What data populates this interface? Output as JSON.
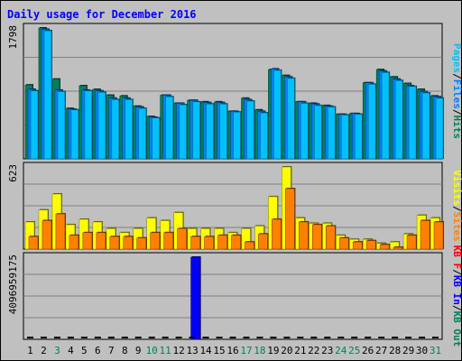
{
  "chart_data": [
    {
      "type": "bar",
      "title": "Daily usage for December 2016",
      "categories": [
        "1",
        "2",
        "3",
        "4",
        "5",
        "6",
        "7",
        "8",
        "9",
        "10",
        "11",
        "12",
        "13",
        "14",
        "15",
        "16",
        "17",
        "18",
        "19",
        "20",
        "21",
        "22",
        "23",
        "24",
        "25",
        "26",
        "27",
        "28",
        "29",
        "30",
        "31"
      ],
      "weekend_days": [
        "3",
        "10",
        "11",
        "17",
        "18",
        "24",
        "25",
        "31"
      ],
      "ymax_label": "1798",
      "ylim": [
        0,
        1798
      ],
      "right_legend": [
        "Pages",
        "/",
        "Files",
        "/",
        "Hits"
      ],
      "series": [
        {
          "name": "Hits",
          "color": "#00805c",
          "values": [
            1020,
            1798,
            1100,
            700,
            1010,
            960,
            880,
            870,
            730,
            590,
            880,
            770,
            810,
            790,
            790,
            660,
            840,
            680,
            1230,
            1150,
            790,
            770,
            740,
            620,
            630,
            1050,
            1230,
            1130,
            1040,
            960,
            870
          ]
        },
        {
          "name": "Files",
          "color": "#0080ff",
          "values": [
            960,
            1780,
            950,
            690,
            950,
            940,
            840,
            840,
            720,
            580,
            880,
            770,
            810,
            780,
            780,
            660,
            820,
            660,
            1240,
            1130,
            790,
            760,
            730,
            620,
            630,
            1050,
            1210,
            1100,
            1010,
            930,
            860
          ]
        },
        {
          "name": "Pages",
          "color": "#00c0ff",
          "values": [
            940,
            1760,
            930,
            680,
            940,
            920,
            820,
            820,
            700,
            570,
            860,
            750,
            790,
            760,
            760,
            650,
            800,
            640,
            1220,
            1110,
            770,
            740,
            720,
            610,
            620,
            1030,
            1190,
            1080,
            1000,
            910,
            840
          ]
        }
      ]
    },
    {
      "type": "bar",
      "ymax_label": "623",
      "ylim": [
        0,
        623
      ],
      "right_legend": [
        "Visits",
        "/",
        "Sites"
      ],
      "series": [
        {
          "name": "Visits",
          "color": "#ffff00",
          "values": [
            210,
            300,
            420,
            190,
            230,
            210,
            160,
            130,
            160,
            240,
            220,
            280,
            160,
            160,
            160,
            130,
            160,
            180,
            400,
            623,
            240,
            200,
            200,
            110,
            80,
            80,
            50,
            60,
            120,
            260,
            240
          ]
        },
        {
          "name": "Sites",
          "color": "#ff8000",
          "values": [
            100,
            220,
            270,
            110,
            130,
            130,
            100,
            100,
            90,
            130,
            130,
            160,
            100,
            100,
            110,
            110,
            60,
            120,
            230,
            460,
            210,
            190,
            180,
            90,
            60,
            70,
            40,
            20,
            110,
            220,
            210
          ]
        }
      ]
    },
    {
      "type": "bar",
      "ymax_label": "4096959175",
      "ylim": [
        0,
        4096959175
      ],
      "right_legend": [
        "KB F",
        "/",
        "KB In",
        "/",
        "KB Out"
      ],
      "series": [
        {
          "name": "KB F",
          "color": "#ff0000",
          "values": [
            0,
            0,
            0,
            0,
            0,
            0,
            0,
            0,
            0,
            0,
            0,
            0,
            0,
            0,
            0,
            0,
            0,
            0,
            0,
            0,
            0,
            0,
            0,
            0,
            0,
            0,
            0,
            0,
            0,
            0,
            0
          ]
        },
        {
          "name": "KB In",
          "color": "#0000ff",
          "values": [
            0,
            0,
            0,
            0,
            0,
            0,
            0,
            0,
            0,
            0,
            0,
            0,
            4096959175,
            0,
            0,
            0,
            0,
            0,
            0,
            0,
            0,
            0,
            0,
            0,
            0,
            0,
            0,
            0,
            0,
            0,
            0
          ]
        },
        {
          "name": "KB Out",
          "color": "#00805c",
          "values": [
            0,
            0,
            0,
            0,
            0,
            0,
            0,
            0,
            0,
            0,
            0,
            0,
            0,
            0,
            0,
            0,
            0,
            0,
            0,
            0,
            0,
            0,
            0,
            0,
            0,
            0,
            0,
            0,
            0,
            0,
            0
          ]
        }
      ]
    }
  ],
  "colors": {
    "weekday_label": "#000000",
    "weekend_label": "#00805c",
    "title": "#0000ff",
    "panel_bg": "#c0c0c0",
    "gridline": "#808080"
  }
}
